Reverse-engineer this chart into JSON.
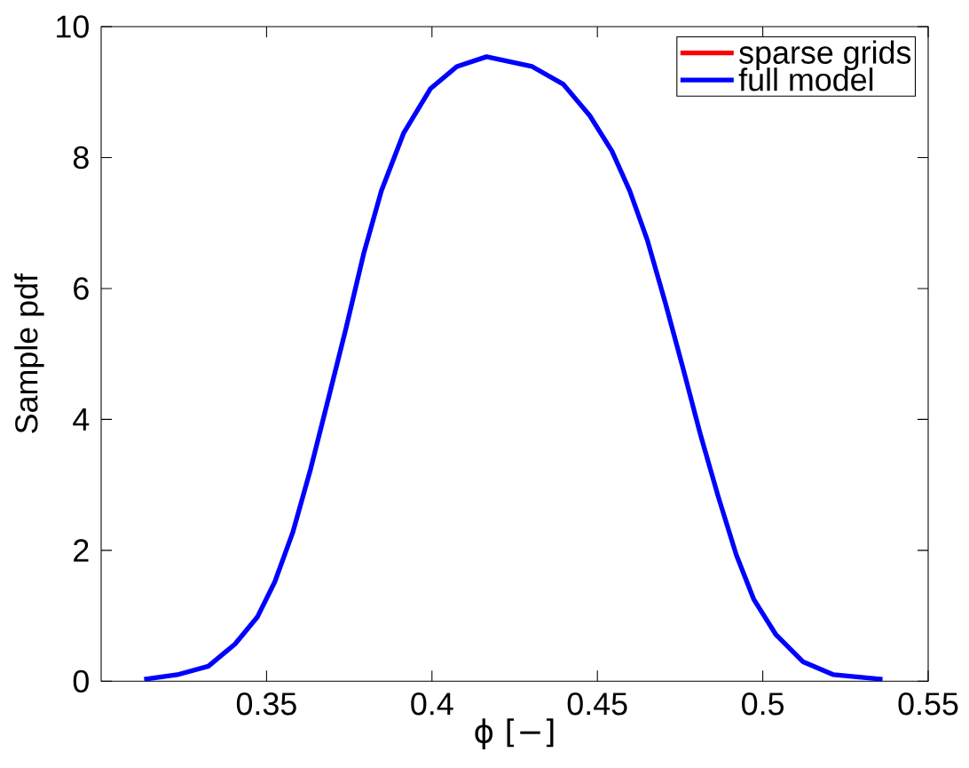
{
  "chart_data": {
    "type": "line",
    "xlabel": "ϕ [−]",
    "ylabel": "Sample pdf",
    "x": [
      0.313,
      0.323,
      0.3324,
      0.3405,
      0.3472,
      0.3525,
      0.3579,
      0.3633,
      0.3686,
      0.374,
      0.3794,
      0.3847,
      0.3914,
      0.3995,
      0.4075,
      0.4165,
      0.4303,
      0.4397,
      0.4477,
      0.4544,
      0.4598,
      0.4651,
      0.4705,
      0.4759,
      0.4812,
      0.4866,
      0.492,
      0.4973,
      0.504,
      0.5121,
      0.5214,
      0.5362
    ],
    "series": [
      {
        "name": "sparse grids",
        "color": "#ff0000",
        "values": [
          null,
          null,
          null,
          null,
          null,
          null,
          null,
          null,
          null,
          null,
          null,
          null,
          null,
          null,
          null,
          null,
          null,
          null,
          null,
          null,
          null,
          null,
          null,
          null,
          null,
          null,
          null,
          null,
          null,
          null,
          null,
          null
        ]
      },
      {
        "name": "full model",
        "color": "#0000ff",
        "values": [
          0.03,
          0.1,
          0.23,
          0.57,
          0.98,
          1.52,
          2.27,
          3.24,
          4.3,
          5.39,
          6.54,
          7.49,
          8.37,
          9.05,
          9.39,
          9.54,
          9.39,
          9.12,
          8.64,
          8.1,
          7.49,
          6.74,
          5.79,
          4.78,
          3.76,
          2.81,
          1.93,
          1.25,
          0.71,
          0.3,
          0.1,
          0.03
        ]
      }
    ],
    "xlim": [
      0.3,
      0.55
    ],
    "xticks": [
      0.35,
      0.4,
      0.45,
      0.5,
      0.55
    ],
    "ylim": [
      0,
      10
    ],
    "yticks": [
      0,
      2,
      4,
      6,
      8,
      10
    ],
    "legend": "top right",
    "line_style": "solid",
    "grid": false
  }
}
